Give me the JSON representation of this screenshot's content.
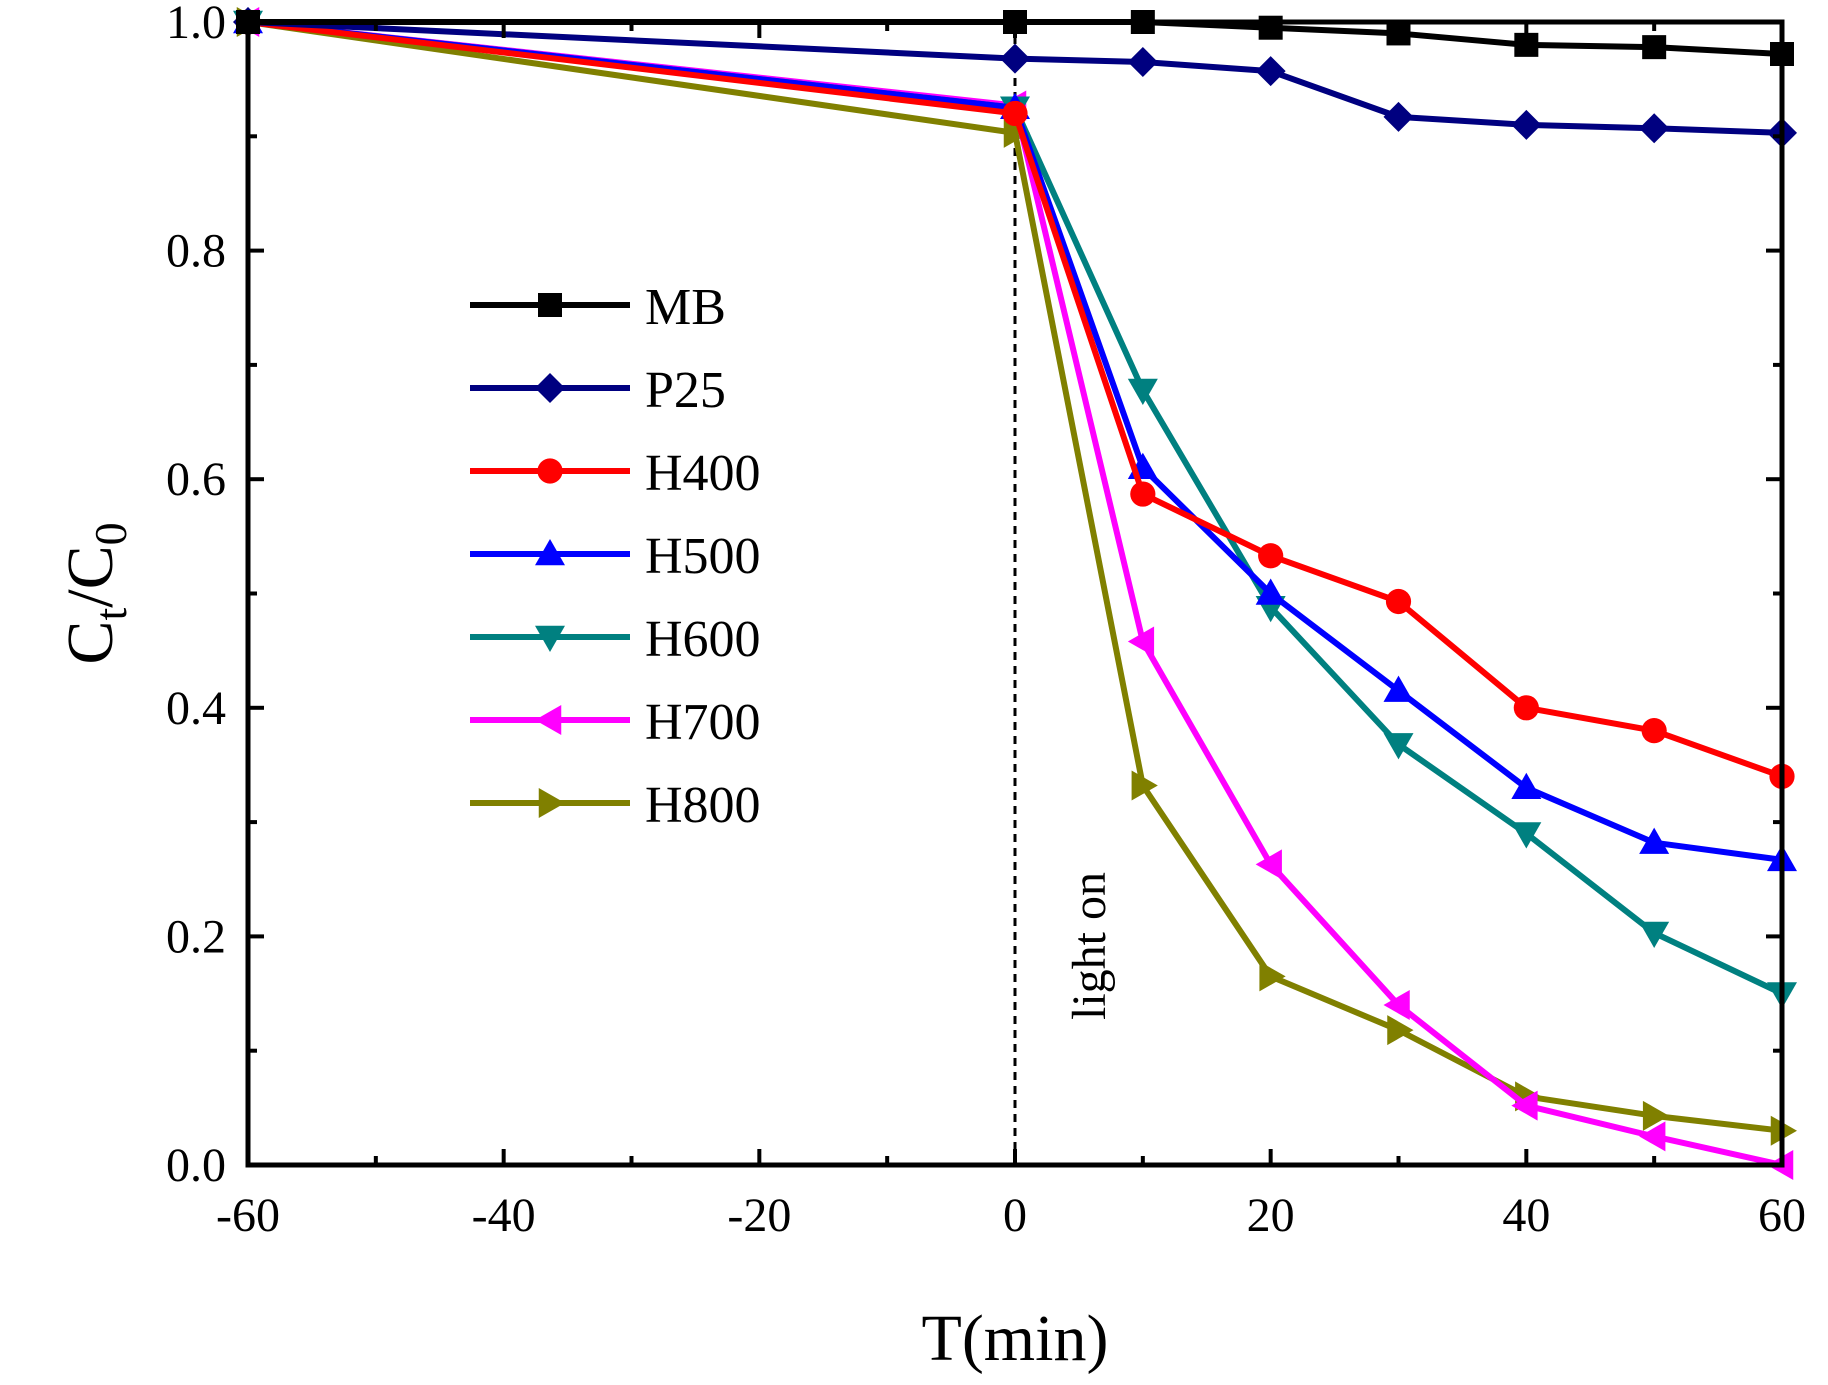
{
  "chart_data": {
    "type": "line",
    "title": "",
    "xlabel": "T(min)",
    "ylabel": {
      "base": "C",
      "sub1": "t",
      "mid": "/C",
      "sub2": "0"
    },
    "xlim": [
      -60,
      60
    ],
    "ylim": [
      0.0,
      1.0
    ],
    "x_ticks": [
      -60,
      -40,
      -20,
      0,
      20,
      40,
      60
    ],
    "x_tick_labels": [
      "-60",
      "-40",
      "-20",
      "0",
      "20",
      "40",
      "60"
    ],
    "y_ticks": [
      0.0,
      0.2,
      0.4,
      0.6,
      0.8,
      1.0
    ],
    "y_tick_labels": [
      "0.0",
      "0.2",
      "0.4",
      "0.6",
      "0.8",
      "1.0"
    ],
    "grid": false,
    "legend_position": "center-left",
    "annotation": {
      "text": "light on",
      "x": 0
    },
    "series": [
      {
        "name": "MB",
        "color": "#000000",
        "marker": "square",
        "x": [
          -60,
          0,
          10,
          20,
          30,
          40,
          50,
          60
        ],
        "y": [
          1.0,
          1.0,
          1.0,
          0.995,
          0.99,
          0.98,
          0.978,
          0.972
        ]
      },
      {
        "name": "P25",
        "color": "#000080",
        "marker": "diamond",
        "x": [
          -60,
          0,
          10,
          20,
          30,
          40,
          50,
          60
        ],
        "y": [
          1.0,
          0.968,
          0.965,
          0.957,
          0.917,
          0.91,
          0.907,
          0.903
        ]
      },
      {
        "name": "H400",
        "color": "#ff0000",
        "marker": "circle",
        "x": [
          -60,
          0,
          10,
          20,
          30,
          40,
          50,
          60
        ],
        "y": [
          1.0,
          0.92,
          0.587,
          0.533,
          0.493,
          0.4,
          0.38,
          0.34
        ]
      },
      {
        "name": "H500",
        "color": "#0000ff",
        "marker": "triangle-up",
        "x": [
          -60,
          0,
          10,
          20,
          30,
          40,
          50,
          60
        ],
        "y": [
          1.0,
          0.925,
          0.61,
          0.5,
          0.415,
          0.33,
          0.282,
          0.267
        ]
      },
      {
        "name": "H600",
        "color": "#008080",
        "marker": "triangle-down",
        "x": [
          -60,
          0,
          10,
          20,
          30,
          40,
          50,
          60
        ],
        "y": [
          1.0,
          0.925,
          0.678,
          0.488,
          0.368,
          0.29,
          0.203,
          0.15
        ]
      },
      {
        "name": "H700",
        "color": "#ff00ff",
        "marker": "triangle-left",
        "x": [
          -60,
          0,
          10,
          20,
          30,
          40,
          50,
          60
        ],
        "y": [
          1.0,
          0.927,
          0.458,
          0.263,
          0.14,
          0.052,
          0.025,
          0.0
        ]
      },
      {
        "name": "H800",
        "color": "#808000",
        "marker": "triangle-right",
        "x": [
          -60,
          0,
          10,
          20,
          30,
          40,
          50,
          60
        ],
        "y": [
          1.0,
          0.903,
          0.332,
          0.165,
          0.118,
          0.06,
          0.043,
          0.03
        ]
      }
    ]
  }
}
